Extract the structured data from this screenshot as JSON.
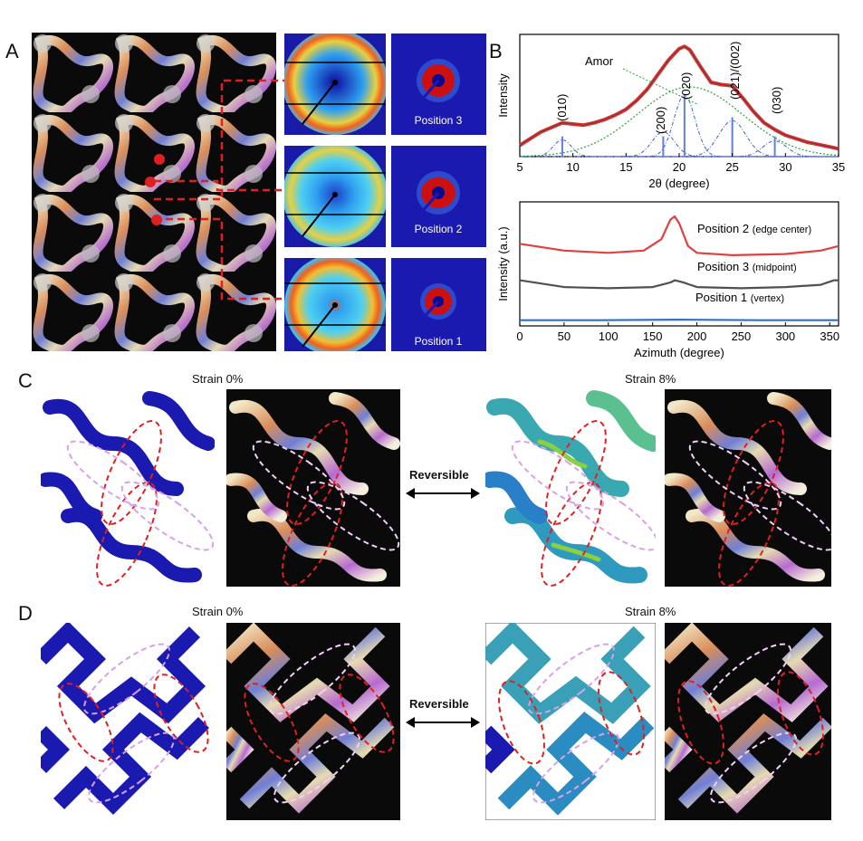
{
  "panels": {
    "A": {
      "letter": "A"
    },
    "B": {
      "letter": "B"
    },
    "C": {
      "letter": "C",
      "strain_left": "Strain 0%",
      "strain_right": "Strain 8%",
      "reversible": "Reversible"
    },
    "D": {
      "letter": "D",
      "strain_left": "Strain 0%",
      "strain_right": "Strain 8%",
      "reversible": "Reversible"
    }
  },
  "saxs_positions": [
    "Position 3",
    "Position 2",
    "Position 1"
  ],
  "colors": {
    "red": "#e02020",
    "pink": "#d9a0e8",
    "fem_blue": "#1a1aa8",
    "saxs_bg": "#1a1aa8"
  },
  "chart_data": [
    {
      "type": "line",
      "xlabel": "2θ (degree)",
      "ylabel": "Intensity",
      "xlim": [
        5,
        35
      ],
      "xticks": [
        5,
        10,
        15,
        20,
        25,
        30,
        35
      ],
      "annotations": [
        "Amor",
        "(010)",
        "(200)",
        "(020)",
        "(021)/(002)",
        "(030)"
      ],
      "peak_positions": [
        9,
        18.5,
        20.5,
        25,
        29
      ],
      "series": [
        {
          "x": [
            5,
            6,
            7,
            8,
            9,
            10,
            11,
            12,
            13,
            14,
            15,
            16,
            17,
            18,
            19,
            20,
            20.5,
            21,
            22,
            23,
            24,
            25,
            26,
            27,
            28,
            29,
            30,
            31,
            32,
            33,
            34,
            35
          ],
          "values": [
            0.1,
            0.16,
            0.22,
            0.26,
            0.3,
            0.29,
            0.28,
            0.3,
            0.33,
            0.37,
            0.42,
            0.5,
            0.6,
            0.73,
            0.86,
            0.96,
            0.98,
            0.95,
            0.8,
            0.66,
            0.64,
            0.63,
            0.52,
            0.4,
            0.3,
            0.24,
            0.19,
            0.16,
            0.13,
            0.11,
            0.09,
            0.07
          ]
        }
      ]
    },
    {
      "type": "line",
      "xlabel": "Azimuth (degree)",
      "ylabel": "Intensity (a.u.)",
      "xlim": [
        0,
        360
      ],
      "xticks": [
        0,
        50,
        100,
        150,
        200,
        250,
        300,
        350
      ],
      "series": [
        {
          "name": "Position 2 (edge center)",
          "x": [
            0,
            50,
            100,
            140,
            160,
            170,
            175,
            180,
            190,
            200,
            240,
            300,
            340,
            360
          ],
          "values": [
            0.72,
            0.66,
            0.64,
            0.66,
            0.76,
            0.93,
            0.96,
            0.9,
            0.7,
            0.64,
            0.62,
            0.63,
            0.66,
            0.7
          ]
        },
        {
          "name": "Position 3 (midpoint)",
          "x": [
            0,
            50,
            100,
            150,
            170,
            175,
            185,
            200,
            250,
            300,
            340,
            355,
            360
          ],
          "values": [
            0.4,
            0.34,
            0.33,
            0.34,
            0.38,
            0.4,
            0.38,
            0.34,
            0.33,
            0.34,
            0.36,
            0.4,
            0.4
          ]
        },
        {
          "name": "Position 1 (vertex)",
          "x": [
            0,
            90,
            180,
            270,
            360
          ],
          "values": [
            0.05,
            0.05,
            0.055,
            0.05,
            0.05
          ]
        }
      ],
      "legend_labels": [
        {
          "main": "Position 2",
          "sub": "(edge center)"
        },
        {
          "main": "Position 3",
          "sub": "(midpoint)"
        },
        {
          "main": "Position 1",
          "sub": "(vertex)"
        }
      ]
    }
  ]
}
